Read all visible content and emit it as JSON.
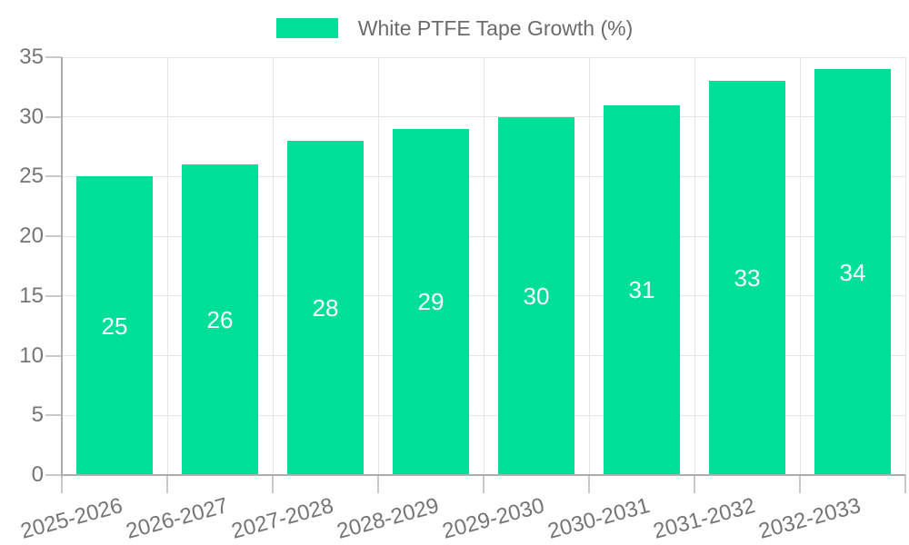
{
  "chart_data": {
    "type": "bar",
    "title": "White PTFE Tape Growth (%)",
    "categories": [
      "2025-2026",
      "2026-2027",
      "2027-2028",
      "2028-2029",
      "2029-2030",
      "2030-2031",
      "2031-2032",
      "2032-2033"
    ],
    "values": [
      25,
      26,
      28,
      29,
      30,
      31,
      33,
      34
    ],
    "series": [
      {
        "name": "White PTFE Tape Growth (%)",
        "values": [
          25,
          26,
          28,
          29,
          30,
          31,
          33,
          34
        ]
      }
    ],
    "bar_value_labels": [
      "25",
      "26",
      "28",
      "29",
      "30",
      "31",
      "33",
      "34"
    ],
    "xlabel": "",
    "ylabel": "",
    "ylim": [
      0,
      35
    ],
    "yticks": [
      0,
      5,
      10,
      15,
      20,
      25,
      30,
      35
    ],
    "grid": "on",
    "legend_position": "top-center",
    "colors": {
      "bar": "#00DF97",
      "bar_label_text": "#FFFFFF",
      "gridline": "#E6E6E6",
      "axis_line": "#ADADAD",
      "tick": "#C9C9C9",
      "axis_text": "#757575",
      "legend_text": "#6B6B6B",
      "background": "#FFFFFF"
    }
  }
}
